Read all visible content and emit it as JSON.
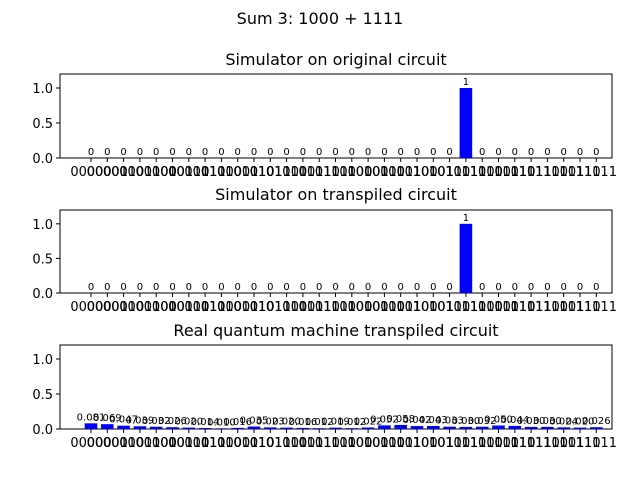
{
  "suptitle": "Sum 3: 1000 + 1111",
  "colors": {
    "bar": "#0000ff",
    "axis": "#000000",
    "background": "#ffffff"
  },
  "chart_data": [
    {
      "type": "bar",
      "title": "Simulator on original circuit",
      "xlabel": "",
      "ylabel": "",
      "ylim": [
        0,
        1.2
      ],
      "yticks": [
        "0.0",
        "0.5",
        "1.0"
      ],
      "categories": [
        "00000",
        "00001",
        "00010",
        "00011",
        "00100",
        "00101",
        "00110",
        "00111",
        "01000",
        "01001",
        "01010",
        "01011",
        "01100",
        "01101",
        "01110",
        "01111",
        "10000",
        "10001",
        "10010",
        "10011",
        "10100",
        "10101",
        "10110",
        "10111",
        "11000",
        "11001",
        "11010",
        "11011",
        "11100",
        "11101",
        "11110",
        "11111"
      ],
      "values": [
        0,
        0,
        0,
        0,
        0,
        0,
        0,
        0,
        0,
        0,
        0,
        0,
        0,
        0,
        0,
        0,
        0,
        0,
        0,
        0,
        0,
        0,
        0,
        1,
        0,
        0,
        0,
        0,
        0,
        0,
        0,
        0
      ],
      "labels": [
        "0",
        "0",
        "0",
        "0",
        "0",
        "0",
        "0",
        "0",
        "0",
        "0",
        "0",
        "0",
        "0",
        "0",
        "0",
        "0",
        "0",
        "0",
        "0",
        "0",
        "0",
        "0",
        "0",
        "1",
        "0",
        "0",
        "0",
        "0",
        "0",
        "0",
        "0",
        "0"
      ],
      "grid": false
    },
    {
      "type": "bar",
      "title": "Simulator on transpiled circuit",
      "xlabel": "",
      "ylabel": "",
      "ylim": [
        0,
        1.2
      ],
      "yticks": [
        "0.0",
        "0.5",
        "1.0"
      ],
      "categories": [
        "00000",
        "00001",
        "00010",
        "00011",
        "00100",
        "00101",
        "00110",
        "00111",
        "01000",
        "01001",
        "01010",
        "01011",
        "01100",
        "01101",
        "01110",
        "01111",
        "10000",
        "10001",
        "10010",
        "10011",
        "10100",
        "10101",
        "10110",
        "10111",
        "11000",
        "11001",
        "11010",
        "11011",
        "11100",
        "11101",
        "11110",
        "11111"
      ],
      "values": [
        0,
        0,
        0,
        0,
        0,
        0,
        0,
        0,
        0,
        0,
        0,
        0,
        0,
        0,
        0,
        0,
        0,
        0,
        0,
        0,
        0,
        0,
        0,
        1,
        0,
        0,
        0,
        0,
        0,
        0,
        0,
        0
      ],
      "labels": [
        "0",
        "0",
        "0",
        "0",
        "0",
        "0",
        "0",
        "0",
        "0",
        "0",
        "0",
        "0",
        "0",
        "0",
        "0",
        "0",
        "0",
        "0",
        "0",
        "0",
        "0",
        "0",
        "0",
        "1",
        "0",
        "0",
        "0",
        "0",
        "0",
        "0",
        "0",
        "0"
      ],
      "grid": false
    },
    {
      "type": "bar",
      "title": "Real quantum machine transpiled circuit",
      "xlabel": "",
      "ylabel": "",
      "ylim": [
        0,
        1.2
      ],
      "yticks": [
        "0.0",
        "0.5",
        "1.0"
      ],
      "categories": [
        "00000",
        "00001",
        "00010",
        "00011",
        "00100",
        "00101",
        "00110",
        "00111",
        "01000",
        "01001",
        "01010",
        "01011",
        "01100",
        "01101",
        "01110",
        "01111",
        "10000",
        "10001",
        "10010",
        "10011",
        "10100",
        "10101",
        "10110",
        "10111",
        "11000",
        "11001",
        "11010",
        "11011",
        "11100",
        "11101",
        "11110",
        "11111"
      ],
      "values": [
        0.081,
        0.069,
        0.047,
        0.039,
        0.032,
        0.026,
        0.02,
        0.014,
        0.01,
        0.016,
        0.035,
        0.023,
        0.02,
        0.016,
        0.012,
        0.019,
        0.012,
        0.022,
        0.052,
        0.058,
        0.042,
        0.043,
        0.033,
        0.03,
        0.032,
        0.05,
        0.044,
        0.03,
        0.03,
        0.024,
        0.02,
        0.026
      ],
      "labels": [
        "0.081",
        "0.069",
        "0.047",
        "0.039",
        "0.032",
        "0.026",
        "0.020",
        "0.014",
        "0.010",
        "0.016",
        "0.035",
        "0.023",
        "0.020",
        "0.016",
        "0.012",
        "0.019",
        "0.012",
        "0.022",
        "0.052",
        "0.058",
        "0.042",
        "0.043",
        "0.033",
        "0.030",
        "0.032",
        "0.050",
        "0.044",
        "0.030",
        "0.030",
        "0.024",
        "0.020",
        "0.026"
      ],
      "grid": false
    }
  ]
}
